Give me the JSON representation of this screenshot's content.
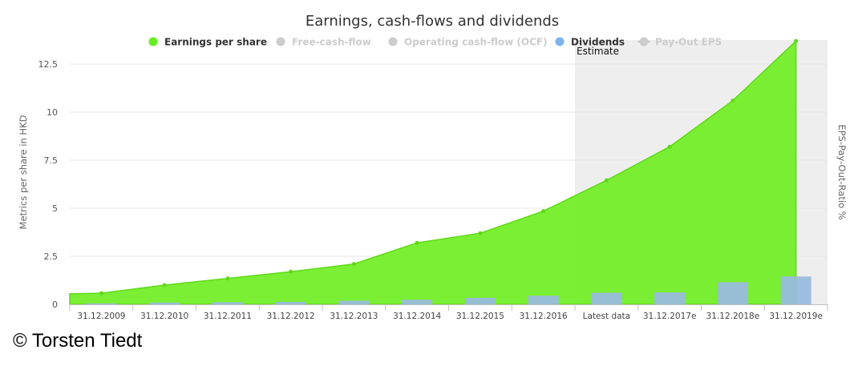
{
  "chart_data": {
    "type": "area",
    "title": "Earnings, cash-flows and dividends",
    "ylabel": "Metrics per share in HKD",
    "ylabel_right": "EPS-Pay-Out-Ratio %",
    "ylim": [
      0,
      13.75
    ],
    "yticks": [
      "0",
      "2.5",
      "5",
      "7.5",
      "10",
      "12.5"
    ],
    "ytick_values": [
      0,
      2.5,
      5,
      7.5,
      10,
      12.5
    ],
    "categories": [
      "31.12.2009",
      "31.12.2010",
      "31.12.2011",
      "31.12.2012",
      "31.12.2013",
      "31.12.2014",
      "31.12.2015",
      "31.12.2016",
      "Latest data",
      "31.12.2017e",
      "31.12.2018e",
      "31.12.2019e"
    ],
    "estimate_label": "Estimate",
    "estimate_start_index": 8,
    "legend": [
      {
        "name": "Earnings per share",
        "color": "#66ee22",
        "active": true
      },
      {
        "name": "Free-cash-flow",
        "color": "#cccccc",
        "active": false
      },
      {
        "name": "Operating cash-flow (OCF)",
        "color": "#cccccc",
        "active": false
      },
      {
        "name": "Dividends",
        "color": "#7cb5ec",
        "active": true
      },
      {
        "name": "Pay-Out EPS",
        "color": "#cccccc",
        "active": false
      }
    ],
    "series": [
      {
        "name": "Earnings per share",
        "type": "area",
        "color": "#70ee22",
        "values": [
          0.58,
          1.0,
          1.35,
          1.7,
          2.1,
          3.2,
          3.7,
          4.85,
          6.45,
          8.2,
          10.6,
          13.7
        ]
      },
      {
        "name": "Dividends",
        "type": "bar",
        "color": "#99bbdd",
        "values": [
          0.05,
          0.09,
          0.11,
          0.13,
          0.19,
          0.24,
          0.34,
          0.45,
          0.6,
          0.62,
          1.15,
          1.45
        ]
      }
    ],
    "grid": true,
    "legend_position": "top"
  },
  "footer": {
    "copyright": "© Torsten Tiedt"
  }
}
